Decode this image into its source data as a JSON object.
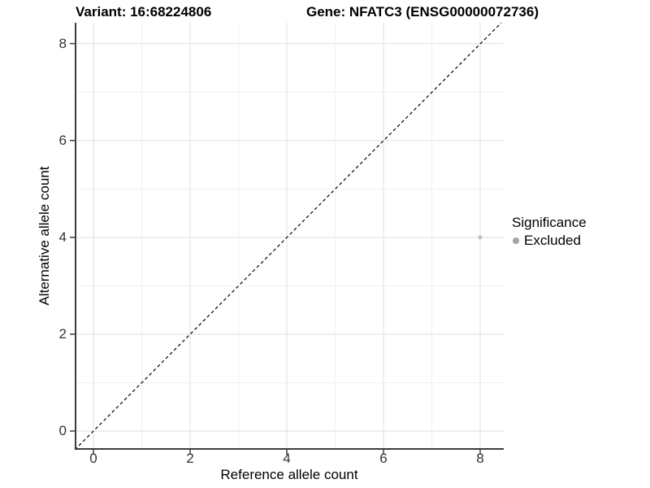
{
  "titles": {
    "left": "Variant: 16:68224806",
    "right": "Gene: NFATC3 (ENSG00000072736)"
  },
  "chart_data": {
    "type": "scatter",
    "title": "Variant: 16:68224806   Gene: NFATC3 (ENSG00000072736)",
    "xlabel": "Reference allele count",
    "ylabel": "Alternative allele count",
    "xlim": [
      -0.4,
      8.5
    ],
    "ylim": [
      -0.45,
      8.4
    ],
    "xticks": [
      0,
      2,
      4,
      6,
      8
    ],
    "yticks": [
      0,
      2,
      4,
      6,
      8
    ],
    "minor_xticks": [
      1,
      3,
      5,
      7
    ],
    "minor_yticks": [
      1,
      3,
      5,
      7
    ],
    "grid": "major and minor gridlines, white panel background",
    "legend_position": "right",
    "series": [
      {
        "name": "Excluded",
        "color": "#c0c0c0",
        "points": [
          {
            "x": 8,
            "y": 4
          }
        ]
      }
    ],
    "reference_line": {
      "type": "identity y=x",
      "style": "dashed",
      "color": "#000000"
    }
  },
  "legend": {
    "title": "Significance",
    "items": [
      {
        "label": "Excluded",
        "color": "#a3a3a3"
      }
    ]
  },
  "colors": {
    "background": "#ffffff",
    "axis_line": "#3d3d3d",
    "tick_label": "#333333",
    "grid_major": "#e4e4e4",
    "grid_minor": "#f1f1f1",
    "point": "#c0c0c0"
  }
}
